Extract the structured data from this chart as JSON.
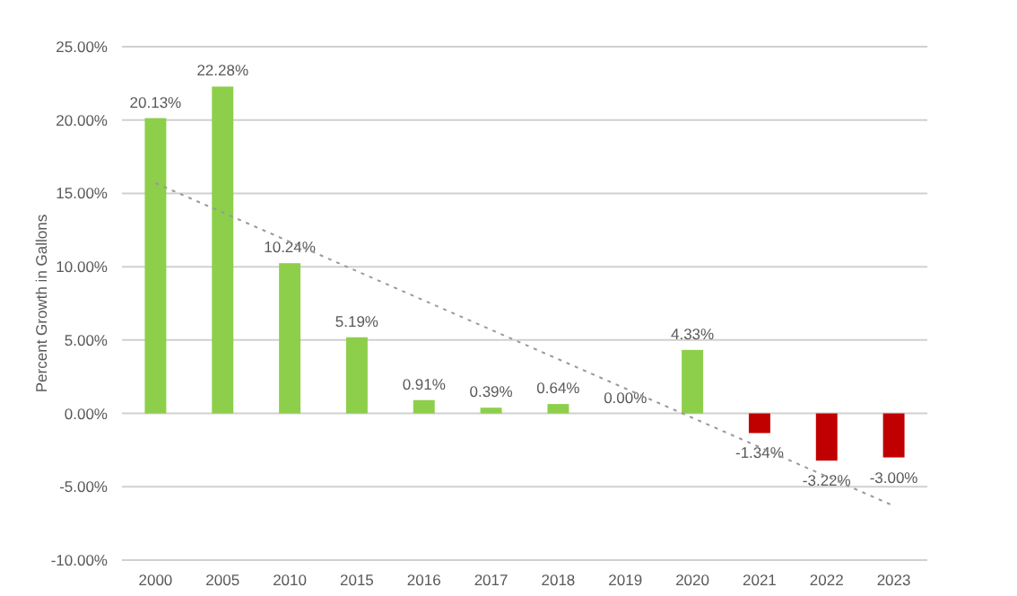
{
  "chart_data": {
    "type": "bar",
    "ylabel": "Percent Growth in Gallons",
    "categories": [
      "2000",
      "2005",
      "2010",
      "2015",
      "2016",
      "2017",
      "2018",
      "2019",
      "2020",
      "2021",
      "2022",
      "2023"
    ],
    "series": [
      {
        "values": [
          20.13,
          22.28,
          10.24,
          5.19,
          0.91,
          0.39,
          0.64,
          0,
          4.33,
          -1.34,
          -3.22,
          -3.0
        ],
        "colors": [
          "#8dcf4a",
          "#8dcf4a",
          "#8dcf4a",
          "#8dcf4a",
          "#8dcf4a",
          "#8dcf4a",
          "#8dcf4a",
          "#8dcf4a",
          "#8dcf4a",
          "#c00000",
          "#c00000",
          "#c00000"
        ],
        "value_labels": [
          "20.13%",
          "22.28%",
          "10.24%",
          "5.19%",
          "0.91%",
          "0.39%",
          "0.64%",
          "0.00%",
          "4.33%",
          "-1.34%",
          "-3.22%",
          "-3.00%"
        ]
      },
      {
        "type": "line",
        "values": [
          15.7,
          13.7,
          11.7,
          9.7,
          7.7,
          5.7,
          3.7,
          1.7,
          -0.3,
          -2.3,
          -4.3,
          -6.3
        ],
        "color": "#999999",
        "line_style": "dotted",
        "marker": "none"
      }
    ],
    "ylim": [
      -10,
      25
    ],
    "yticks": [
      {
        "value": -10,
        "label": "-10.00%"
      },
      {
        "value": -5,
        "label": "-5.00%"
      },
      {
        "value": 0,
        "label": "0.00%"
      },
      {
        "value": 5,
        "label": "5.00%"
      },
      {
        "value": 10,
        "label": "10.00%"
      },
      {
        "value": 15,
        "label": "15.00%"
      },
      {
        "value": 20,
        "label": "20.00%"
      },
      {
        "value": 25,
        "label": "25.00%"
      }
    ],
    "grid": "y"
  }
}
